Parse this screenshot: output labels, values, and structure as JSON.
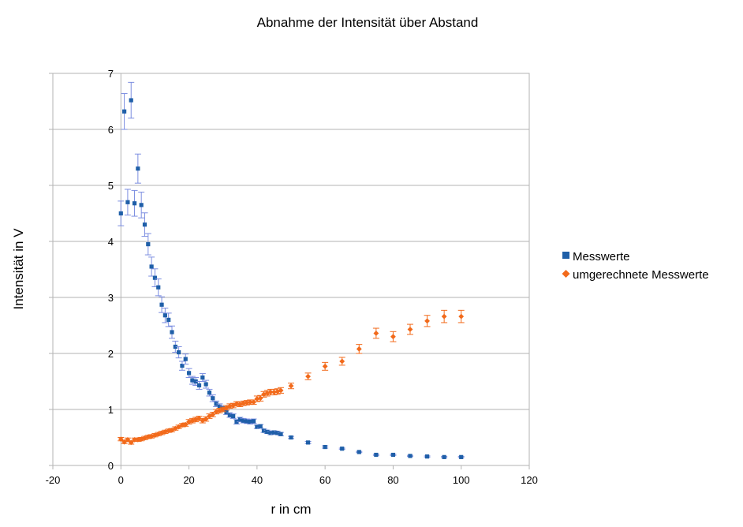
{
  "chart_data": {
    "type": "scatter",
    "title": "Abnahme der Intensität über Abstand",
    "xlabel": "r in cm",
    "ylabel": "Intensität in V",
    "xlim": [
      -20,
      120
    ],
    "ylim": [
      0,
      7
    ],
    "xticks": [
      -20,
      0,
      20,
      40,
      60,
      80,
      100,
      120
    ],
    "yticks": [
      0,
      1,
      2,
      3,
      4,
      5,
      6,
      7
    ],
    "grid": "horizontal",
    "legend_position": "right",
    "series": [
      {
        "name": "Messwerte",
        "marker": "square",
        "color": "#1f5fa8",
        "error_color": "#7b8de0",
        "points": [
          [
            0,
            4.5,
            0.22
          ],
          [
            1,
            6.32,
            0.32
          ],
          [
            2,
            4.7,
            0.23
          ],
          [
            3,
            6.52,
            0.32
          ],
          [
            4,
            4.68,
            0.23
          ],
          [
            5,
            5.3,
            0.26
          ],
          [
            6,
            4.65,
            0.23
          ],
          [
            7,
            4.3,
            0.21
          ],
          [
            8,
            3.95,
            0.19
          ],
          [
            9,
            3.55,
            0.17
          ],
          [
            10,
            3.35,
            0.16
          ],
          [
            11,
            3.18,
            0.15
          ],
          [
            12,
            2.87,
            0.14
          ],
          [
            13,
            2.68,
            0.13
          ],
          [
            14,
            2.6,
            0.12
          ],
          [
            15,
            2.38,
            0.11
          ],
          [
            16,
            2.12,
            0.1
          ],
          [
            17,
            2.02,
            0.1
          ],
          [
            18,
            1.78,
            0.08
          ],
          [
            19,
            1.9,
            0.09
          ],
          [
            20,
            1.65,
            0.08
          ],
          [
            21,
            1.52,
            0.07
          ],
          [
            22,
            1.5,
            0.07
          ],
          [
            23,
            1.43,
            0.07
          ],
          [
            24,
            1.57,
            0.07
          ],
          [
            25,
            1.45,
            0.07
          ],
          [
            26,
            1.3,
            0.06
          ],
          [
            27,
            1.2,
            0.06
          ],
          [
            28,
            1.1,
            0.05
          ],
          [
            29,
            1.05,
            0.05
          ],
          [
            30,
            1.02,
            0.05
          ],
          [
            31,
            0.95,
            0.04
          ],
          [
            32,
            0.9,
            0.04
          ],
          [
            33,
            0.88,
            0.04
          ],
          [
            34,
            0.78,
            0.04
          ],
          [
            35,
            0.82,
            0.04
          ],
          [
            36,
            0.8,
            0.04
          ],
          [
            37,
            0.79,
            0.04
          ],
          [
            38,
            0.78,
            0.04
          ],
          [
            39,
            0.79,
            0.04
          ],
          [
            40,
            0.69,
            0.03
          ],
          [
            41,
            0.7,
            0.03
          ],
          [
            42,
            0.62,
            0.03
          ],
          [
            43,
            0.6,
            0.03
          ],
          [
            44,
            0.58,
            0.03
          ],
          [
            45,
            0.59,
            0.03
          ],
          [
            46,
            0.58,
            0.03
          ],
          [
            47,
            0.56,
            0.03
          ],
          [
            50,
            0.5,
            0.02
          ],
          [
            55,
            0.41,
            0.02
          ],
          [
            60,
            0.33,
            0.02
          ],
          [
            65,
            0.3,
            0.01
          ],
          [
            70,
            0.24,
            0.01
          ],
          [
            75,
            0.19,
            0.01
          ],
          [
            80,
            0.19,
            0.01
          ],
          [
            85,
            0.17,
            0.01
          ],
          [
            90,
            0.16,
            0.01
          ],
          [
            95,
            0.15,
            0.01
          ],
          [
            100,
            0.15,
            0.01
          ]
        ]
      },
      {
        "name": "umgerechnete Messwerte",
        "marker": "diamond",
        "color": "#f26a1b",
        "error_color": "#f26a1b",
        "points": [
          [
            0,
            0.47,
            0.03
          ],
          [
            1,
            0.42,
            0.03
          ],
          [
            2,
            0.46,
            0.03
          ],
          [
            3,
            0.41,
            0.03
          ],
          [
            4,
            0.46,
            0.03
          ],
          [
            5,
            0.46,
            0.03
          ],
          [
            6,
            0.47,
            0.03
          ],
          [
            7,
            0.49,
            0.03
          ],
          [
            8,
            0.51,
            0.03
          ],
          [
            9,
            0.52,
            0.03
          ],
          [
            10,
            0.54,
            0.03
          ],
          [
            11,
            0.56,
            0.03
          ],
          [
            12,
            0.58,
            0.03
          ],
          [
            13,
            0.6,
            0.03
          ],
          [
            14,
            0.62,
            0.03
          ],
          [
            15,
            0.63,
            0.03
          ],
          [
            16,
            0.66,
            0.03
          ],
          [
            17,
            0.69,
            0.03
          ],
          [
            18,
            0.72,
            0.03
          ],
          [
            19,
            0.73,
            0.03
          ],
          [
            20,
            0.78,
            0.04
          ],
          [
            21,
            0.8,
            0.04
          ],
          [
            22,
            0.82,
            0.04
          ],
          [
            23,
            0.84,
            0.04
          ],
          [
            24,
            0.8,
            0.04
          ],
          [
            25,
            0.83,
            0.04
          ],
          [
            26,
            0.88,
            0.04
          ],
          [
            27,
            0.91,
            0.04
          ],
          [
            28,
            0.96,
            0.04
          ],
          [
            29,
            0.98,
            0.04
          ],
          [
            30,
            1.0,
            0.04
          ],
          [
            31,
            1.03,
            0.04
          ],
          [
            32,
            1.06,
            0.04
          ],
          [
            33,
            1.07,
            0.04
          ],
          [
            34,
            1.1,
            0.04
          ],
          [
            35,
            1.09,
            0.04
          ],
          [
            36,
            1.11,
            0.04
          ],
          [
            37,
            1.12,
            0.04
          ],
          [
            38,
            1.13,
            0.04
          ],
          [
            39,
            1.13,
            0.04
          ],
          [
            40,
            1.19,
            0.05
          ],
          [
            41,
            1.2,
            0.05
          ],
          [
            42,
            1.27,
            0.05
          ],
          [
            43,
            1.29,
            0.05
          ],
          [
            44,
            1.31,
            0.05
          ],
          [
            45,
            1.31,
            0.05
          ],
          [
            46,
            1.32,
            0.05
          ],
          [
            47,
            1.34,
            0.05
          ],
          [
            50,
            1.42,
            0.05
          ],
          [
            55,
            1.59,
            0.06
          ],
          [
            60,
            1.77,
            0.07
          ],
          [
            65,
            1.86,
            0.07
          ],
          [
            70,
            2.08,
            0.08
          ],
          [
            75,
            2.36,
            0.09
          ],
          [
            80,
            2.3,
            0.09
          ],
          [
            85,
            2.43,
            0.09
          ],
          [
            90,
            2.58,
            0.1
          ],
          [
            95,
            2.66,
            0.11
          ],
          [
            100,
            2.66,
            0.11
          ]
        ]
      }
    ]
  }
}
